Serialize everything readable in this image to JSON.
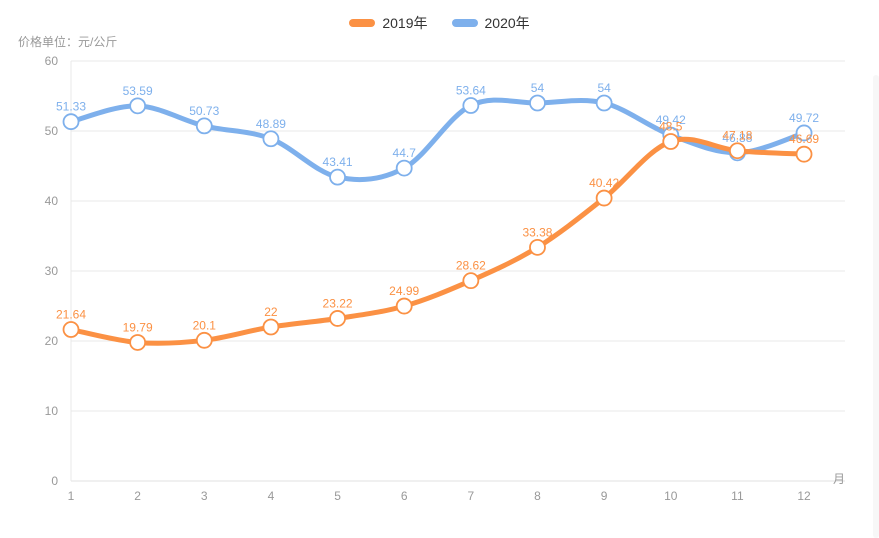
{
  "axis_title": "价格单位：元/公斤",
  "legend": [
    {
      "label": "2019年",
      "color": "#fb9144"
    },
    {
      "label": "2020年",
      "color": "#7eb0ec"
    }
  ],
  "colors": {
    "grid": "#e9e9e9",
    "axis_line": "#e0e0e0",
    "tick_text": "#999999",
    "background": "#ffffff"
  },
  "chart_data": {
    "type": "line",
    "smooth": true,
    "grid": true,
    "legend_position": "top-center",
    "title": "",
    "ylabel": "价格单位：元/公斤",
    "xlabel": "月",
    "ylim": [
      0,
      60
    ],
    "ytick_step": 10,
    "yticks": [
      0,
      10,
      20,
      30,
      40,
      50,
      60
    ],
    "categories": [
      1,
      2,
      3,
      4,
      5,
      6,
      7,
      8,
      9,
      10,
      11,
      12
    ],
    "series": [
      {
        "name": "2019年",
        "color": "#fb9144",
        "values": [
          21.64,
          19.79,
          20.1,
          22,
          23.22,
          24.99,
          28.62,
          33.38,
          40.42,
          48.5,
          47.18,
          46.69
        ]
      },
      {
        "name": "2020年",
        "color": "#7eb0ec",
        "values": [
          51.33,
          53.59,
          50.73,
          48.89,
          43.41,
          44.7,
          53.64,
          54,
          54,
          49.42,
          46.88,
          49.72
        ]
      }
    ]
  }
}
